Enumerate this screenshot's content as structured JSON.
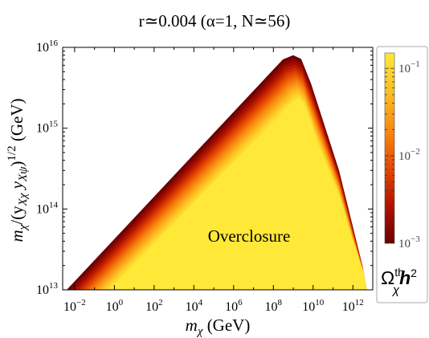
{
  "chart_data": {
    "type": "area",
    "title": "r≃0.004 (α=1, N≃56)",
    "xlabel": {
      "pre": "m",
      "sub": "χ",
      "post": " (GeV)"
    },
    "ylabel": {
      "a": "m",
      "a_sub": "χ",
      "b": "/(y",
      "b_sub": "Xχ",
      "c": " y",
      "c_sub": "Xψ",
      "d": ")",
      "d_sup": "1/2",
      "e": " (GeV)"
    },
    "annotation": "Overclosure",
    "x_scale": "log",
    "y_scale": "log",
    "xlim": [
      0.0025,
      10000000000000.0
    ],
    "ylim": [
      10000000000000.0,
      1e+16
    ],
    "x_ticks": [
      {
        "base": "10",
        "exp": "−2",
        "value": 0.01
      },
      {
        "base": "10",
        "exp": "0",
        "value": 1
      },
      {
        "base": "10",
        "exp": "2",
        "value": 100
      },
      {
        "base": "10",
        "exp": "4",
        "value": 10000
      },
      {
        "base": "10",
        "exp": "6",
        "value": 1000000
      },
      {
        "base": "10",
        "exp": "8",
        "value": 100000000
      },
      {
        "base": "10",
        "exp": "10",
        "value": 10000000000
      },
      {
        "base": "10",
        "exp": "12",
        "value": 1000000000000
      }
    ],
    "y_ticks": [
      {
        "base": "10",
        "exp": "13",
        "value": 10000000000000.0
      },
      {
        "base": "10",
        "exp": "14",
        "value": 100000000000000.0
      },
      {
        "base": "10",
        "exp": "15",
        "value": 1000000000000000.0
      },
      {
        "base": "10",
        "exp": "16",
        "value": 1e+16
      }
    ],
    "band": {
      "upper_edge": [
        [
          0.004,
          10000000000000.0
        ],
        [
          300000000,
          7100000000000000.0
        ],
        [
          1000000000,
          8000000000000000.0
        ],
        [
          2500000000,
          7200000000000000.0
        ],
        [
          8000000000,
          3500000000000000.0
        ],
        [
          200000000000,
          300000000000000.0
        ],
        [
          1000000000000,
          60000000000000.0
        ],
        [
          3000000000000,
          20000000000000.0
        ],
        [
          5000000000000,
          10000000000000.0
        ]
      ],
      "lower_edge": [
        [
          0.5,
          10000000000000.0
        ],
        [
          1000000000,
          2200000000000000.0
        ],
        [
          2000000000,
          2400000000000000.0
        ],
        [
          4000000000,
          1900000000000000.0
        ],
        [
          20000000000,
          600000000000000.0
        ],
        [
          200000000000,
          150000000000000.0
        ],
        [
          1000000000000,
          40000000000000.0
        ],
        [
          3500000000000,
          16000000000000.0
        ],
        [
          5000000000000,
          10000000000000.0
        ]
      ],
      "dark_color": "#7a0000",
      "light_color": "#ffdb2a"
    },
    "colorbar": {
      "title": {
        "base": "Ω",
        "sup": "th",
        "sub": "χ",
        "post": "h",
        "post_sup": "2"
      },
      "range": [
        0.001,
        0.15
      ],
      "ticks": [
        {
          "base": "10",
          "exp": "−1",
          "value": 0.1
        },
        {
          "base": "10",
          "exp": "−2",
          "value": 0.01
        },
        {
          "base": "10",
          "exp": "−3",
          "value": 0.001
        }
      ],
      "colors": [
        "#6b0000",
        "#b31200",
        "#e84a00",
        "#f88a12",
        "#fdbf22",
        "#ffe838"
      ]
    }
  }
}
